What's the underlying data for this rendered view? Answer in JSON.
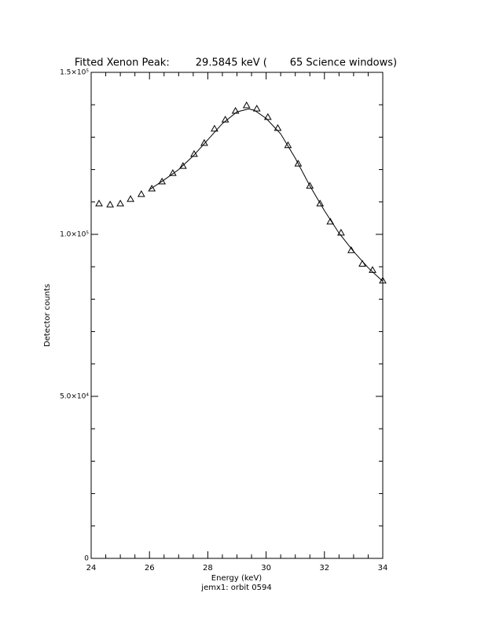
{
  "chart_data": {
    "type": "scatter",
    "title": "Fitted Xenon Peak:        29.5845 keV (       65 Science windows)",
    "subtitle": "jemx1: orbit 0594",
    "x_label": "Energy (keV)",
    "y_label": "Detector counts",
    "xlim": [
      24,
      34
    ],
    "ylim": [
      0,
      150000
    ],
    "xticks": [
      24,
      26,
      28,
      30,
      32,
      34
    ],
    "x_minor_ticks": [
      24.5,
      25,
      25.5,
      26.5,
      27,
      27.5,
      28.5,
      29,
      29.5,
      30.5,
      31,
      31.5,
      32.5,
      33,
      33.5
    ],
    "yticks": [
      0,
      {
        "value": 50000,
        "label": "5.0×10⁴"
      },
      {
        "value": 100000,
        "label": "1.0×10⁵"
      },
      {
        "value": 150000,
        "label": "1.5×10⁵"
      }
    ],
    "y_minor_ticks": [
      10000,
      20000,
      30000,
      40000,
      60000,
      70000,
      80000,
      90000,
      110000,
      120000,
      130000,
      140000
    ],
    "color": "#000000",
    "series": [
      {
        "type": "scatter",
        "marker": "triangle",
        "x": [
          24.27,
          24.65,
          25.0,
          25.35,
          25.72,
          26.08,
          26.43,
          26.8,
          27.15,
          27.53,
          27.88,
          28.23,
          28.6,
          28.95,
          29.33,
          29.68,
          30.06,
          30.4,
          30.75,
          31.1,
          31.5,
          31.85,
          32.2,
          32.57,
          32.92,
          33.3,
          33.65,
          34.0
        ],
        "values": [
          109500,
          109200,
          109500,
          110900,
          112400,
          114100,
          116300,
          118900,
          121100,
          124800,
          128200,
          132600,
          135400,
          138100,
          139800,
          138800,
          136200,
          132800,
          127500,
          121800,
          115000,
          109500,
          103900,
          100500,
          95100,
          90900,
          89000,
          85700
        ]
      },
      {
        "type": "line",
        "x": [
          26.0,
          26.5,
          27.0,
          27.5,
          28.0,
          28.5,
          29.0,
          29.4,
          29.6,
          30.0,
          30.5,
          31.0,
          31.5,
          32.0,
          32.5,
          33.0,
          33.5,
          34.0
        ],
        "values": [
          113800,
          116800,
          120000,
          124200,
          129200,
          134200,
          137800,
          138700,
          138300,
          135800,
          131000,
          123500,
          115000,
          107300,
          100400,
          94700,
          89700,
          85500
        ]
      }
    ]
  }
}
